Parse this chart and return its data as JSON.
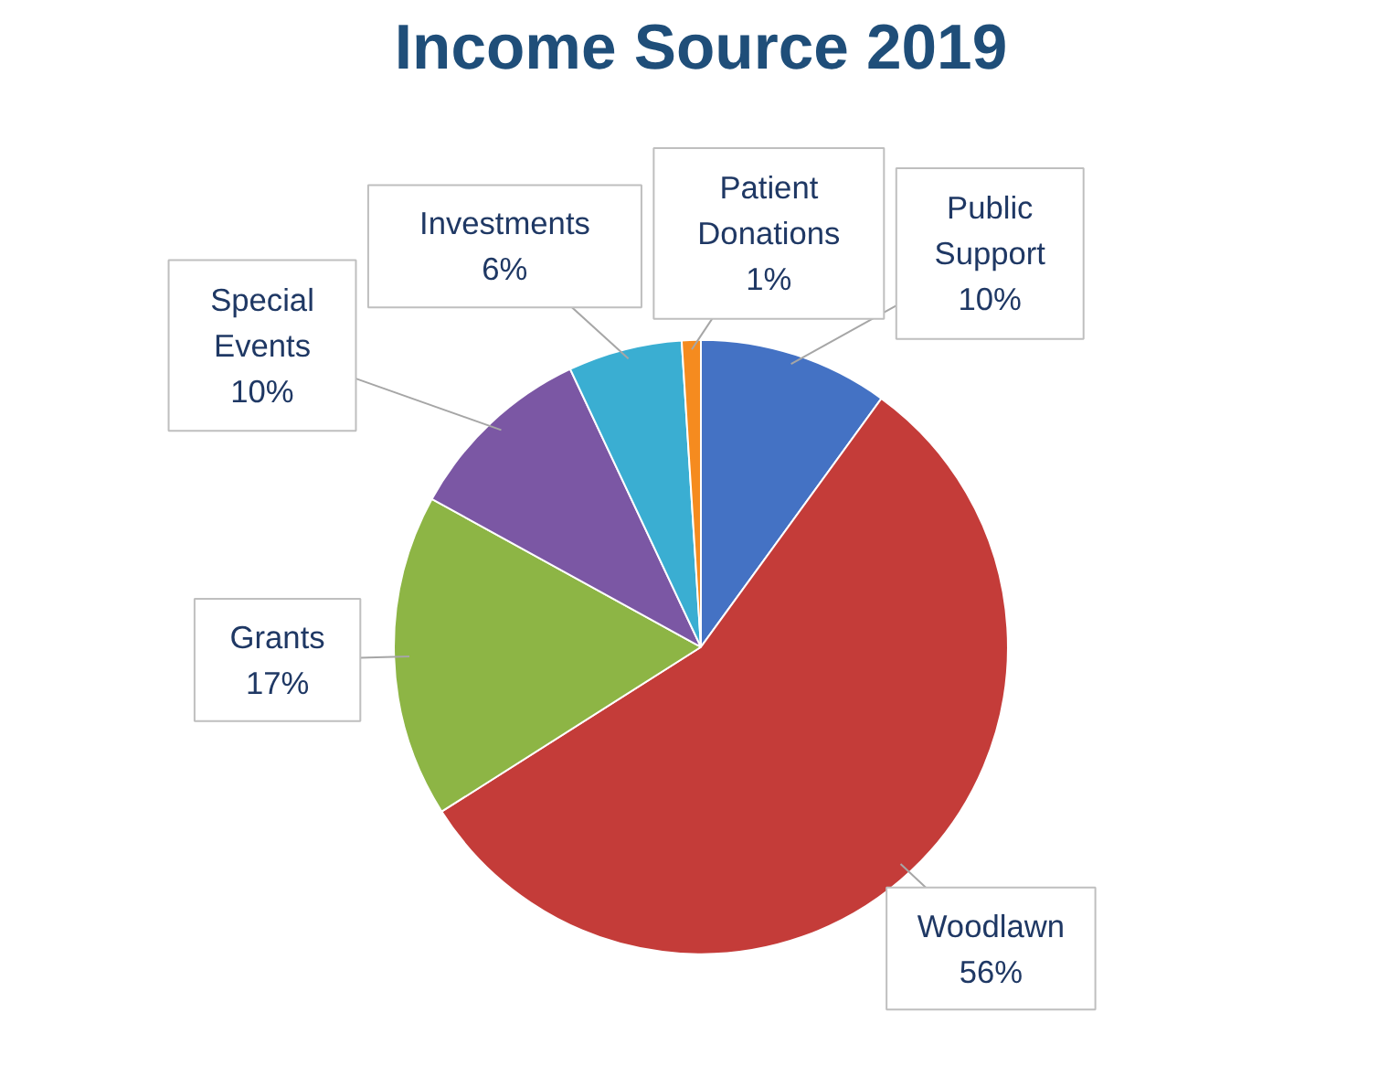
{
  "chart_data": {
    "type": "pie",
    "title": "Income Source 2019",
    "categories": [
      "Public Support",
      "Woodlawn",
      "Grants",
      "Special Events",
      "Investments",
      "Patient Donations"
    ],
    "values": [
      10,
      56,
      17,
      10,
      6,
      1
    ],
    "colors": [
      "#4472c4",
      "#c43c39",
      "#8db545",
      "#7b57a4",
      "#3aaed2",
      "#f58b1f"
    ],
    "value_labels": [
      "10%",
      "56%",
      "17%",
      "10%",
      "6%",
      "1%"
    ]
  }
}
